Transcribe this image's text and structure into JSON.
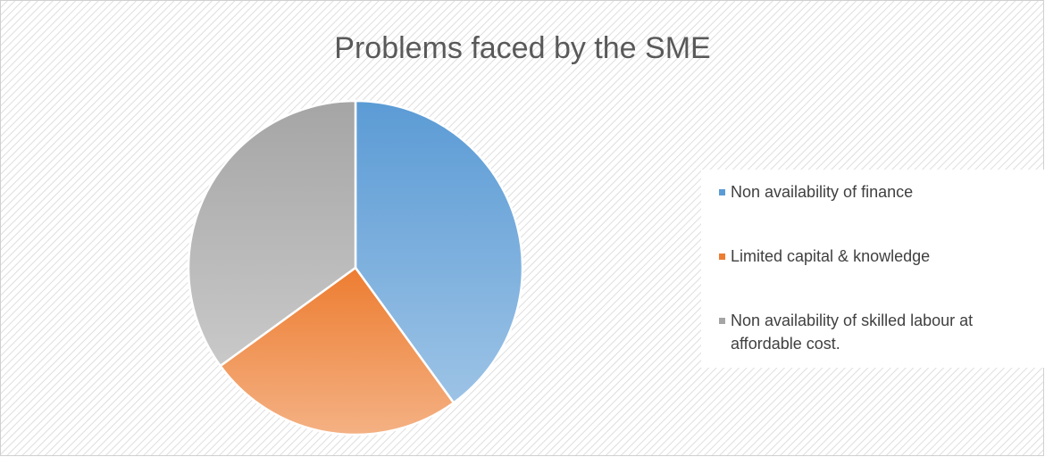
{
  "chart_data": {
    "type": "pie",
    "title": "Problems faced by the SME",
    "categories": [
      "Non availability of finance",
      "Limited capital & knowledge",
      "Non availability of skilled labour at affordable cost."
    ],
    "values": [
      40,
      25,
      35
    ],
    "colors": [
      "#5b9bd5",
      "#ed7d31",
      "#a5a5a5"
    ],
    "legend": "right"
  }
}
